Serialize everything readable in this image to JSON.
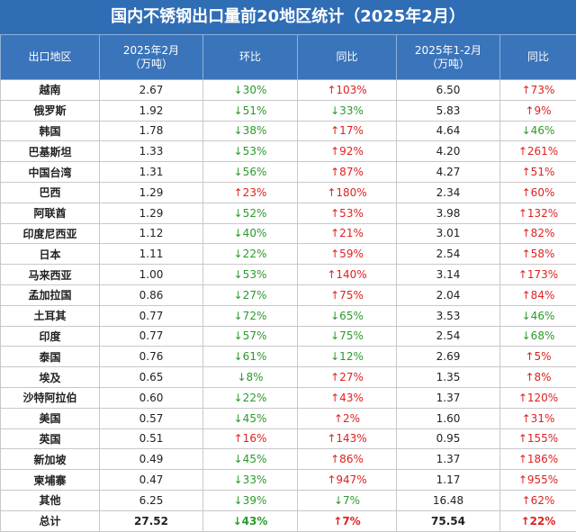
{
  "title": "国内不锈钢出口量前20地区统计（2025年2月）",
  "table": {
    "header": [
      "出口地区",
      "2025年2月\n（万吨）",
      "环比",
      "同比",
      "2025年1-2月\n（万吨）",
      "同比"
    ],
    "rows": [
      [
        "越南",
        "2.67",
        "↓30%",
        "↑103%",
        "6.50",
        "↑73%"
      ],
      [
        "俄罗斯",
        "1.92",
        "↓51%",
        "↓33%",
        "5.83",
        "↑9%"
      ],
      [
        "韩国",
        "1.78",
        "↓38%",
        "↑17%",
        "4.64",
        "↓46%"
      ],
      [
        "巴基斯坦",
        "1.33",
        "↓53%",
        "↑92%",
        "4.20",
        "↑261%"
      ],
      [
        "中国台湾",
        "1.31",
        "↓56%",
        "↑87%",
        "4.27",
        "↑51%"
      ],
      [
        "巴西",
        "1.29",
        "↑23%",
        "↑180%",
        "2.34",
        "↑60%"
      ],
      [
        "阿联酋",
        "1.29",
        "↓52%",
        "↑53%",
        "3.98",
        "↑132%"
      ],
      [
        "印度尼西亚",
        "1.12",
        "↓40%",
        "↑21%",
        "3.01",
        "↑82%"
      ],
      [
        "日本",
        "1.11",
        "↓22%",
        "↑59%",
        "2.54",
        "↑58%"
      ],
      [
        "马来西亚",
        "1.00",
        "↓53%",
        "↑140%",
        "3.14",
        "↑173%"
      ],
      [
        "孟加拉国",
        "0.86",
        "↓27%",
        "↑75%",
        "2.04",
        "↑84%"
      ],
      [
        "土耳其",
        "0.77",
        "↓72%",
        "↓65%",
        "3.53",
        "↓46%"
      ],
      [
        "印度",
        "0.77",
        "↓57%",
        "↓75%",
        "2.54",
        "↓68%"
      ],
      [
        "泰国",
        "0.76",
        "↓61%",
        "↓12%",
        "2.69",
        "↑5%"
      ],
      [
        "埃及",
        "0.65",
        "↓8%",
        "↑27%",
        "1.35",
        "↑8%"
      ],
      [
        "沙特阿拉伯",
        "0.60",
        "↓22%",
        "↑43%",
        "1.37",
        "↑120%"
      ],
      [
        "美国",
        "0.57",
        "↓45%",
        "↑2%",
        "1.60",
        "↑31%"
      ],
      [
        "英国",
        "0.51",
        "↑16%",
        "↑143%",
        "0.95",
        "↑155%"
      ],
      [
        "新加坡",
        "0.49",
        "↓45%",
        "↑86%",
        "1.37",
        "↑186%"
      ],
      [
        "柬埔寨",
        "0.47",
        "↓33%",
        "↑947%",
        "1.17",
        "↑955%"
      ],
      [
        "其他",
        "6.25",
        "↓39%",
        "↓7%",
        "16.48",
        "↑62%"
      ],
      [
        "总计",
        "27.52",
        "↓43%",
        "↑7%",
        "75.54",
        "↑22%"
      ]
    ]
  }
}
